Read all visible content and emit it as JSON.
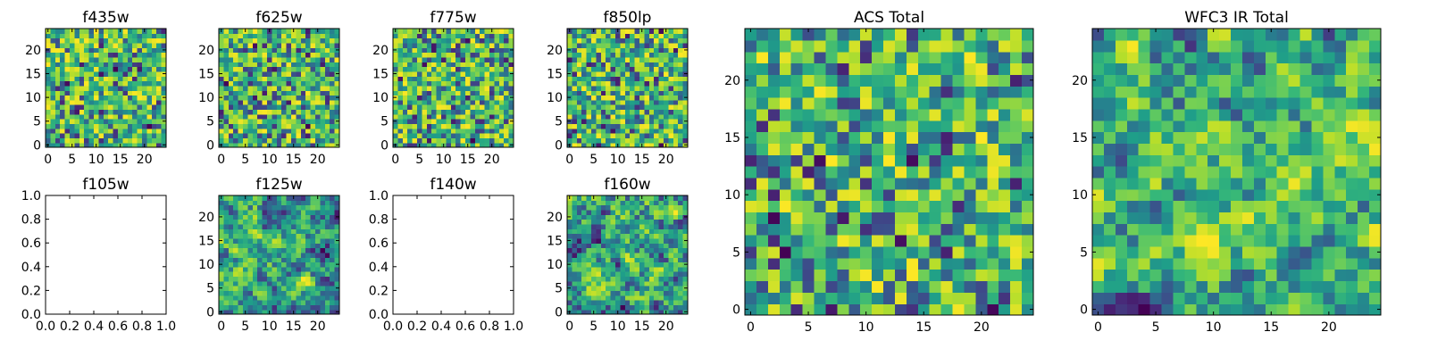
{
  "chart_data": [
    {
      "type": "heatmap",
      "title": "f435w",
      "image_size": [
        25,
        25
      ],
      "xticks": [
        "0",
        "5",
        "10",
        "15",
        "20"
      ],
      "yticks": [
        "0",
        "5",
        "10",
        "15",
        "20"
      ],
      "colormap": "viridis",
      "seed": 11,
      "smooth": 0
    },
    {
      "type": "heatmap",
      "title": "f625w",
      "image_size": [
        25,
        25
      ],
      "xticks": [
        "0",
        "5",
        "10",
        "15",
        "20"
      ],
      "yticks": [
        "0",
        "5",
        "10",
        "15",
        "20"
      ],
      "colormap": "viridis",
      "seed": 23,
      "smooth": 0
    },
    {
      "type": "heatmap",
      "title": "f775w",
      "image_size": [
        25,
        25
      ],
      "xticks": [
        "0",
        "5",
        "10",
        "15",
        "20"
      ],
      "yticks": [
        "0",
        "5",
        "10",
        "15",
        "20"
      ],
      "colormap": "viridis",
      "seed": 37,
      "smooth": 0
    },
    {
      "type": "heatmap",
      "title": "f850lp",
      "image_size": [
        25,
        25
      ],
      "xticks": [
        "0",
        "5",
        "10",
        "15",
        "20"
      ],
      "yticks": [
        "0",
        "5",
        "10",
        "15",
        "20"
      ],
      "colormap": "viridis",
      "seed": 41,
      "smooth": 0
    },
    {
      "type": "empty",
      "title": "f105w",
      "xticks": [
        "0.0",
        "0.2",
        "0.4",
        "0.6",
        "0.8",
        "1.0"
      ],
      "yticks": [
        "0.0",
        "0.2",
        "0.4",
        "0.6",
        "0.8",
        "1.0"
      ]
    },
    {
      "type": "heatmap",
      "title": "f125w",
      "image_size": [
        25,
        25
      ],
      "xticks": [
        "0",
        "5",
        "10",
        "15",
        "20"
      ],
      "yticks": [
        "0",
        "5",
        "10",
        "15",
        "20"
      ],
      "colormap": "viridis",
      "seed": 53,
      "smooth": 1
    },
    {
      "type": "empty",
      "title": "f140w",
      "xticks": [
        "0.0",
        "0.2",
        "0.4",
        "0.6",
        "0.8",
        "1.0"
      ],
      "yticks": [
        "0.0",
        "0.2",
        "0.4",
        "0.6",
        "0.8",
        "1.0"
      ]
    },
    {
      "type": "heatmap",
      "title": "f160w",
      "image_size": [
        25,
        25
      ],
      "xticks": [
        "0",
        "5",
        "10",
        "15",
        "20"
      ],
      "yticks": [
        "0",
        "5",
        "10",
        "15",
        "20"
      ],
      "colormap": "viridis",
      "seed": 67,
      "smooth": 1
    },
    {
      "type": "heatmap",
      "title": "ACS Total",
      "image_size": [
        25,
        25
      ],
      "xticks": [
        "0",
        "5",
        "10",
        "15",
        "20"
      ],
      "yticks": [
        "0",
        "5",
        "10",
        "15",
        "20"
      ],
      "colormap": "viridis",
      "seed": 79,
      "smooth": 0
    },
    {
      "type": "heatmap",
      "title": "WFC3 IR Total",
      "image_size": [
        25,
        25
      ],
      "xticks": [
        "0",
        "5",
        "10",
        "15",
        "20"
      ],
      "yticks": [
        "0",
        "5",
        "10",
        "15",
        "20"
      ],
      "colormap": "viridis",
      "seed": 97,
      "smooth": 1
    }
  ]
}
